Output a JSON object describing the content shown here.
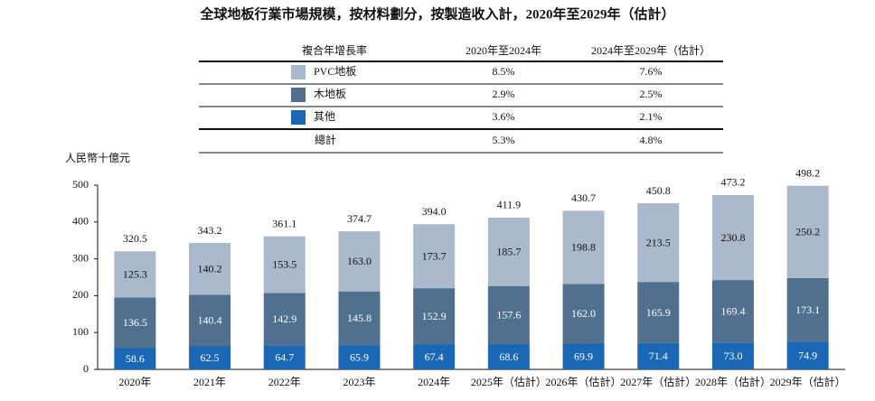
{
  "chart_data": {
    "type": "stacked_bar",
    "title": "全球地板行業市場規模，按材料劃分，按製造收入計，2020年至2029年（估計）",
    "y_label": "人民幣十億元",
    "categories": [
      "2020年",
      "2021年",
      "2022年",
      "2023年",
      "2024年",
      "2025年（估計）",
      "2026年（估計）",
      "2027年（估計）",
      "2028年（估計）",
      "2029年（估計）"
    ],
    "series": [
      {
        "name": "其他",
        "color": "#1a67b5",
        "values": [
          58.6,
          62.5,
          64.7,
          65.9,
          67.4,
          68.6,
          69.9,
          71.4,
          73.0,
          74.9
        ],
        "value_labels": [
          "58.6",
          "62.5",
          "64.7",
          "65.9",
          "67.4",
          "68.6",
          "69.9",
          "71.4",
          "73.0",
          "74.9"
        ]
      },
      {
        "name": "木地板",
        "color": "#50708f",
        "values": [
          136.5,
          140.4,
          142.9,
          145.8,
          152.9,
          157.6,
          162.0,
          165.9,
          169.4,
          173.1
        ],
        "value_labels": [
          "136.5",
          "140.4",
          "142.9",
          "145.8",
          "152.9",
          "157.6",
          "162.0",
          "165.9",
          "169.4",
          "173.1"
        ]
      },
      {
        "name": "PVC地板",
        "color": "#aab9cc",
        "values": [
          125.3,
          140.2,
          153.5,
          163.0,
          173.7,
          185.7,
          198.8,
          213.5,
          230.8,
          250.2
        ],
        "value_labels": [
          "125.3",
          "140.2",
          "153.5",
          "163.0",
          "173.7",
          "185.7",
          "198.8",
          "213.5",
          "230.8",
          "250.2"
        ]
      }
    ],
    "total": {
      "values": [
        320.5,
        343.2,
        361.1,
        374.7,
        394.0,
        411.9,
        430.7,
        450.8,
        473.2,
        498.2
      ],
      "value_labels": [
        "320.5",
        "343.2",
        "361.1",
        "374.7",
        "394.0",
        "411.9",
        "430.7",
        "450.8",
        "473.2",
        "498.2"
      ]
    },
    "ylim": [
      0,
      500
    ],
    "yticks": [
      0,
      100,
      200,
      300,
      400,
      500
    ],
    "cagr_table": {
      "header": "複合年增長率",
      "columns": [
        "2020年至2024年",
        "2024年至2029年（估計）"
      ],
      "rows": [
        [
          "8.5%",
          "7.6%"
        ],
        [
          "2.9%",
          "2.5%"
        ],
        [
          "3.6%",
          "2.1%"
        ]
      ],
      "total_label": "總計",
      "total": [
        "5.3%",
        "4.8%"
      ]
    }
  }
}
